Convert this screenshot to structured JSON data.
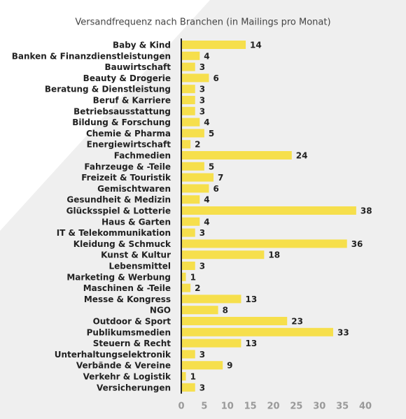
{
  "chart_data": {
    "type": "bar",
    "orientation": "horizontal",
    "title": "Versandfrequenz nach Branchen (in Mailings pro Monat)",
    "categories": [
      "Baby & Kind",
      "Banken & Finanzdienstleistungen",
      "Bauwirtschaft",
      "Beauty & Drogerie",
      "Beratung & Dienstleistung",
      "Beruf & Karriere",
      "Betriebsausstattung",
      "Bildung & Forschung",
      "Chemie & Pharma",
      "Energiewirtschaft",
      "Fachmedien",
      "Fahrzeuge & -Teile",
      "Freizeit & Touristik",
      "Gemischtwaren",
      "Gesundheit & Medizin",
      "Glücksspiel & Lotterie",
      "Haus & Garten",
      "IT & Telekommunikation",
      "Kleidung & Schmuck",
      "Kunst & Kultur",
      "Lebensmittel",
      "Marketing & Werbung",
      "Maschinen & -Teile",
      "Messe & Kongress",
      "NGO",
      "Outdoor & Sport",
      "Publikumsmedien",
      "Steuern & Recht",
      "Unterhaltungselektronik",
      "Verbände & Vereine",
      "Verkehr & Logistik",
      "Versicherungen"
    ],
    "values": [
      14,
      4,
      3,
      6,
      3,
      3,
      3,
      4,
      5,
      2,
      24,
      5,
      7,
      6,
      4,
      38,
      4,
      3,
      36,
      18,
      3,
      1,
      2,
      13,
      8,
      23,
      33,
      13,
      3,
      9,
      1,
      3
    ],
    "color": "#f6df4c",
    "xlim": [
      0,
      40
    ],
    "xticks": [
      0,
      5,
      10,
      15,
      20,
      25,
      30,
      35,
      40
    ]
  }
}
